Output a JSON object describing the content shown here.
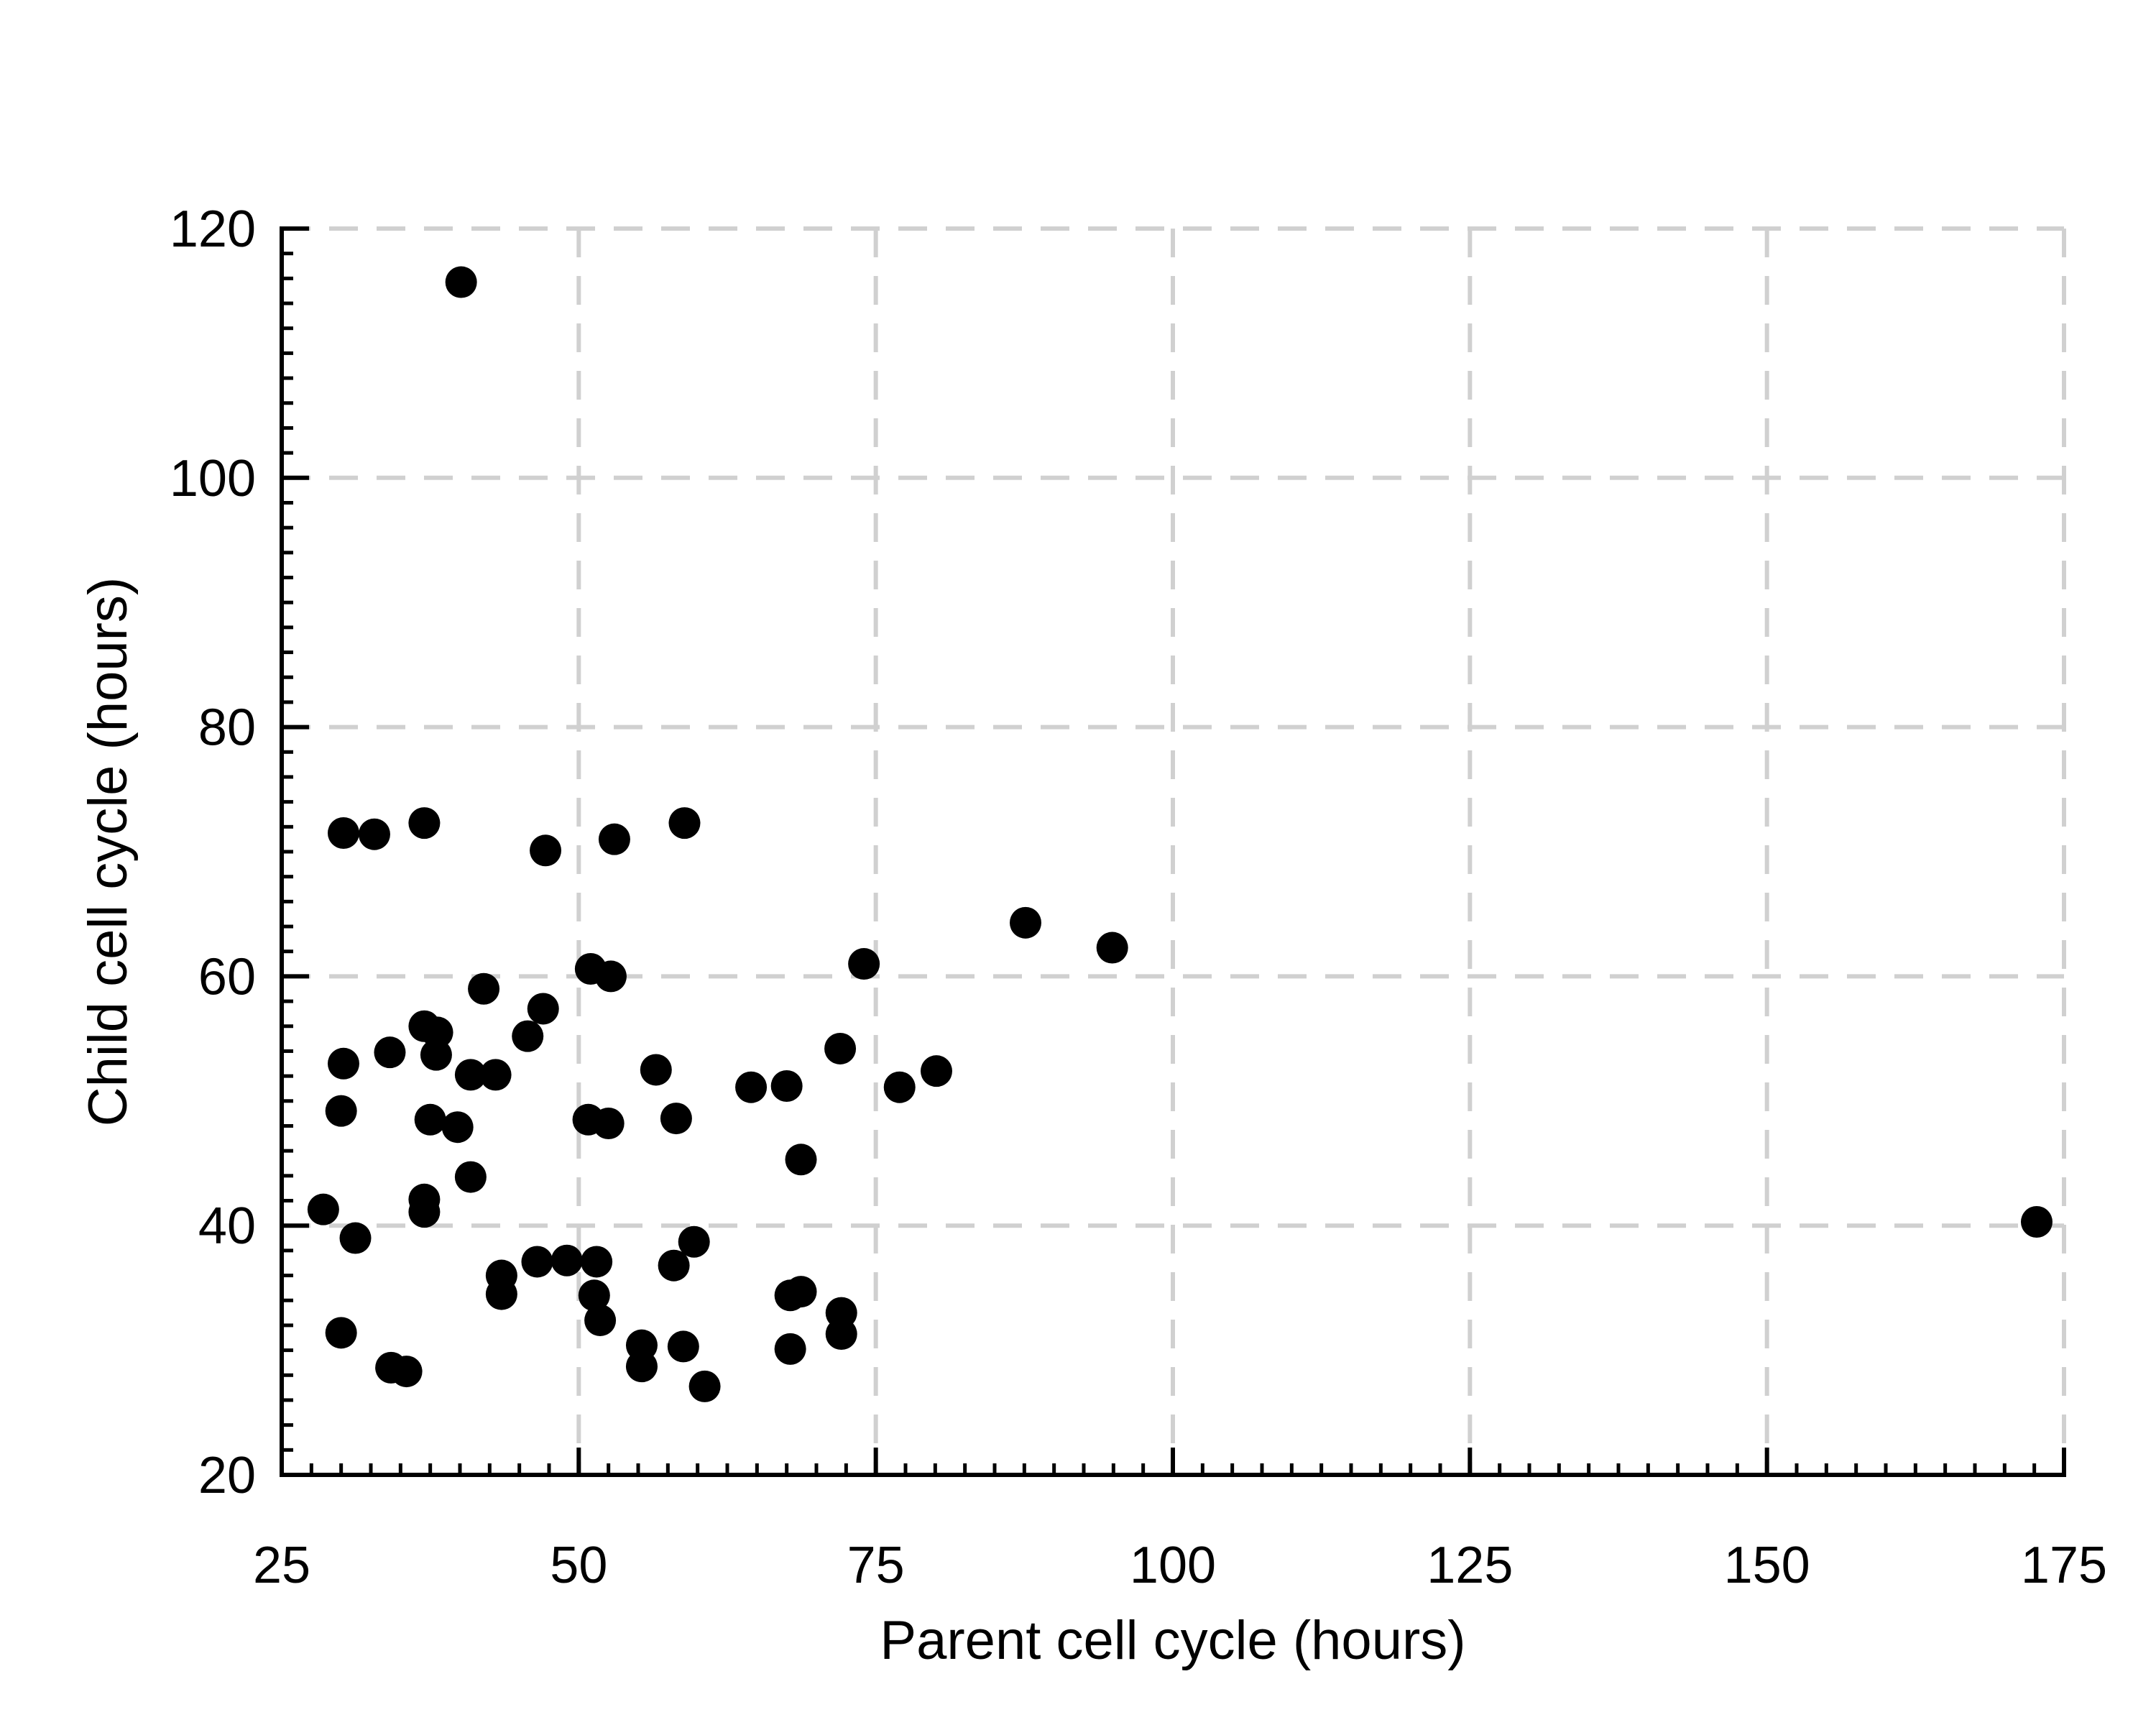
{
  "chart_data": {
    "type": "scatter",
    "title": "",
    "xlabel": "Parent cell cycle (hours)",
    "ylabel": "Child cell cycle (hours)",
    "xlim": [
      25,
      175
    ],
    "ylim": [
      20,
      120
    ],
    "x_ticks": [
      25,
      50,
      75,
      100,
      125,
      150,
      175
    ],
    "y_ticks": [
      20,
      40,
      60,
      80,
      100,
      120
    ],
    "x_tick_labels": [
      "25",
      "50",
      "75",
      "100",
      "125",
      "150",
      "175"
    ],
    "y_tick_labels": [
      "20",
      "40",
      "60",
      "80",
      "100",
      "120"
    ],
    "grid": true,
    "legend": "none",
    "marker_color": "#000000",
    "grid_color": "#d0d0d0",
    "series": [
      {
        "points": [
          [
            40.1,
            115.7
          ],
          [
            30.2,
            71.5
          ],
          [
            32.8,
            71.4
          ],
          [
            37.0,
            72.3
          ],
          [
            47.2,
            70.1
          ],
          [
            53.0,
            71.0
          ],
          [
            58.9,
            72.3
          ],
          [
            87.6,
            64.3
          ],
          [
            94.9,
            62.3
          ],
          [
            51.0,
            60.6
          ],
          [
            52.7,
            60.0
          ],
          [
            74.0,
            61.0
          ],
          [
            42.0,
            59.0
          ],
          [
            47.0,
            57.4
          ],
          [
            37.0,
            56.0
          ],
          [
            38.1,
            55.5
          ],
          [
            45.7,
            55.2
          ],
          [
            34.1,
            53.9
          ],
          [
            38.0,
            53.7
          ],
          [
            30.2,
            53.0
          ],
          [
            40.9,
            52.1
          ],
          [
            43.0,
            52.1
          ],
          [
            56.5,
            52.5
          ],
          [
            64.5,
            51.1
          ],
          [
            67.5,
            51.2
          ],
          [
            72.0,
            54.2
          ],
          [
            77.0,
            51.1
          ],
          [
            80.1,
            52.4
          ],
          [
            30.0,
            49.2
          ],
          [
            37.5,
            48.5
          ],
          [
            39.8,
            47.9
          ],
          [
            50.8,
            48.5
          ],
          [
            52.5,
            48.2
          ],
          [
            58.2,
            48.6
          ],
          [
            68.7,
            45.3
          ],
          [
            40.9,
            43.9
          ],
          [
            37.0,
            42.1
          ],
          [
            37.0,
            41.1
          ],
          [
            28.5,
            41.3
          ],
          [
            31.2,
            39.0
          ],
          [
            46.5,
            37.1
          ],
          [
            49.0,
            37.2
          ],
          [
            51.5,
            37.1
          ],
          [
            58.0,
            36.8
          ],
          [
            59.7,
            38.7
          ],
          [
            43.5,
            36.0
          ],
          [
            43.5,
            34.5
          ],
          [
            51.3,
            34.4
          ],
          [
            51.8,
            32.4
          ],
          [
            67.8,
            34.4
          ],
          [
            68.7,
            34.7
          ],
          [
            72.1,
            33.0
          ],
          [
            72.1,
            31.3
          ],
          [
            30.0,
            31.4
          ],
          [
            34.2,
            28.6
          ],
          [
            35.5,
            28.3
          ],
          [
            55.3,
            30.4
          ],
          [
            55.3,
            28.7
          ],
          [
            58.8,
            30.3
          ],
          [
            60.6,
            27.1
          ],
          [
            67.8,
            30.1
          ],
          [
            172.7,
            40.3
          ]
        ]
      }
    ]
  }
}
